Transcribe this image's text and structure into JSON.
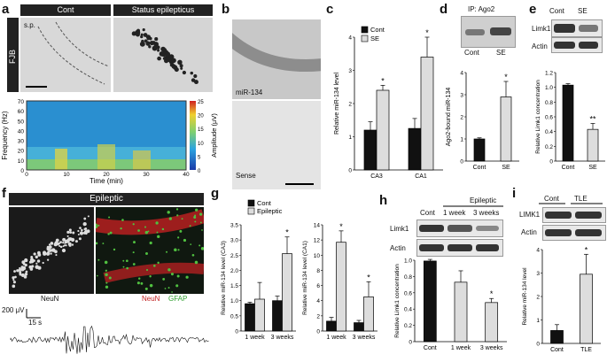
{
  "panel_labels": {
    "a": "a",
    "b": "b",
    "c": "c",
    "d": "d",
    "e": "e",
    "f": "f",
    "g": "g",
    "h": "h",
    "i": "i"
  },
  "a": {
    "side_label": "FJB",
    "cont": "Cont",
    "se": "Status epilepticus",
    "sp": "s.p.",
    "spectrogram": {
      "ylabel": "Frequency (Hz)",
      "xlabel": "Time (min)",
      "yticks": [
        "0",
        "10",
        "20",
        "30",
        "40",
        "50",
        "60",
        "70"
      ],
      "xticks": [
        "0",
        "10",
        "20",
        "30",
        "40"
      ],
      "cbar_label": "Amplitude (μV)",
      "cbar_ticks": [
        "0",
        "5",
        "10",
        "15",
        "20",
        "25"
      ]
    }
  },
  "b": {
    "label_top": "miR-134",
    "label_bottom": "Sense"
  },
  "c": {
    "chart_data": {
      "type": "bar",
      "categories": [
        "CA3",
        "CA1"
      ],
      "series": [
        {
          "name": "Cont",
          "values": [
            1.2,
            1.25
          ]
        },
        {
          "name": "SE",
          "values": [
            2.4,
            3.4
          ]
        }
      ],
      "errors": [
        [
          0.25,
          0.3
        ],
        [
          0.15,
          0.6
        ]
      ],
      "ylabel": "Relative miR-134 level",
      "ylim": [
        0,
        4
      ],
      "yticks": [
        "0",
        "1",
        "2",
        "3",
        "4"
      ],
      "significance": [
        "*",
        "*"
      ],
      "legend": [
        "Cont",
        "SE"
      ]
    }
  },
  "d": {
    "ip_label": "IP: Ago2",
    "blot_cats": [
      "Cont",
      "SE"
    ],
    "chart_data": {
      "type": "bar",
      "categories": [
        "Cont",
        "SE"
      ],
      "values": [
        1.0,
        2.9
      ],
      "errors": [
        0.05,
        0.7
      ],
      "ylabel": "Ago2-bound miR-134",
      "ylim": [
        0,
        4
      ],
      "yticks": [
        "0",
        "1",
        "2",
        "3",
        "4"
      ],
      "significance": [
        "",
        "*"
      ]
    }
  },
  "e": {
    "blot_cats": [
      "Cont",
      "SE"
    ],
    "blot_rows": [
      "Limk1",
      "Actin"
    ],
    "chart_data": {
      "type": "bar",
      "categories": [
        "Cont",
        "SE"
      ],
      "values": [
        1.03,
        0.43
      ],
      "errors": [
        0.02,
        0.08
      ],
      "ylabel": "Relative Limk1 concentration",
      "ylim": [
        0,
        1.2
      ],
      "yticks": [
        "0",
        "0.2",
        "0.4",
        "0.6",
        "0.8",
        "1.0",
        "1.2"
      ],
      "significance": [
        "",
        "**"
      ]
    }
  },
  "f": {
    "title": "Epileptic",
    "neun": "NeuN",
    "merge_neun": "NeuN",
    "merge_gfap": "GFAP",
    "scale_uv": "200 μV",
    "scale_s": "15 s"
  },
  "g": {
    "legend": [
      "Cont",
      "Epileptic"
    ],
    "chart_data": [
      {
        "type": "bar",
        "categories": [
          "1 week",
          "3 weeks"
        ],
        "series": [
          {
            "name": "Cont",
            "values": [
              0.9,
              1.0
            ]
          },
          {
            "name": "Epileptic",
            "values": [
              1.05,
              2.55
            ]
          }
        ],
        "errors": [
          [
            0.05,
            0.15
          ],
          [
            0.55,
            0.55
          ]
        ],
        "ylabel": "Relative miR-134 level (CA3)",
        "ylim": [
          0,
          3.5
        ],
        "yticks": [
          "0",
          "0.5",
          "1.0",
          "1.5",
          "2.0",
          "2.5",
          "3.0",
          "3.5"
        ],
        "significance": [
          "",
          "*"
        ]
      },
      {
        "type": "bar",
        "categories": [
          "1 week",
          "3 weeks"
        ],
        "series": [
          {
            "name": "Cont",
            "values": [
              1.3,
              1.1
            ]
          },
          {
            "name": "Epileptic",
            "values": [
              11.7,
              4.5
            ]
          }
        ],
        "errors": [
          [
            0.5,
            0.3
          ],
          [
            1.5,
            2.0
          ]
        ],
        "ylabel": "Relative miR-134 level (CA1)",
        "ylim": [
          0,
          14
        ],
        "yticks": [
          "0",
          "2",
          "4",
          "6",
          "8",
          "10",
          "12",
          "14"
        ],
        "significance": [
          "*",
          "*"
        ]
      }
    ]
  },
  "h": {
    "group_label": "Epileptic",
    "blot_cats": [
      "Cont",
      "1 week",
      "3 weeks"
    ],
    "blot_rows": [
      "Limk1",
      "Actin"
    ],
    "chart_data": {
      "type": "bar",
      "categories": [
        "Cont",
        "1 week",
        "3 weeks"
      ],
      "values": [
        0.99,
        0.73,
        0.48
      ],
      "errors": [
        0.02,
        0.14,
        0.05
      ],
      "ylabel": "Relative Limk1 concentration",
      "ylim": [
        0,
        1.0
      ],
      "yticks": [
        "0",
        "0.2",
        "0.4",
        "0.6",
        "0.8",
        "1.0"
      ],
      "significance": [
        "",
        "",
        "*"
      ]
    }
  },
  "i": {
    "blot_cats": [
      "Cont",
      "TLE"
    ],
    "blot_rows": [
      "LIMK1",
      "Actin"
    ],
    "chart_data": {
      "type": "bar",
      "categories": [
        "Cont",
        "TLE"
      ],
      "values": [
        0.55,
        2.95
      ],
      "errors": [
        0.25,
        0.85
      ],
      "ylabel": "Relative miR-134 level",
      "ylim": [
        0,
        4
      ],
      "yticks": [
        "0",
        "1",
        "2",
        "3",
        "4"
      ],
      "significance": [
        "",
        "*"
      ]
    }
  }
}
